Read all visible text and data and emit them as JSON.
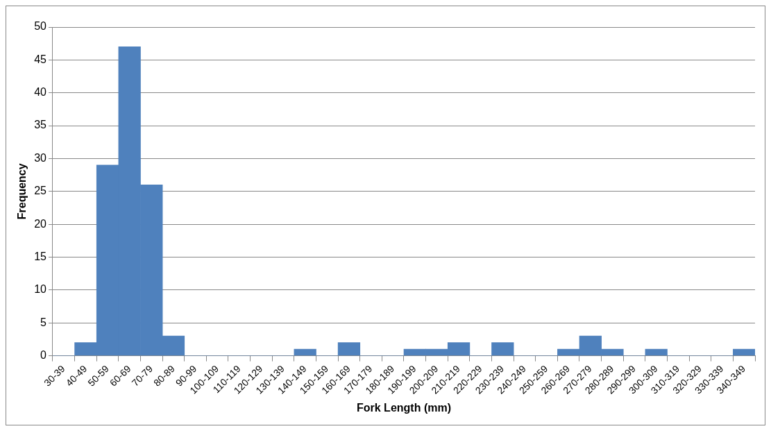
{
  "chart_data": {
    "type": "bar",
    "xlabel": "Fork Length (mm)",
    "ylabel": "Frequency",
    "categories": [
      "30-39",
      "40-49",
      "50-59",
      "60-69",
      "70-79",
      "80-89",
      "90-99",
      "100-109",
      "110-119",
      "120-129",
      "130-139",
      "140-149",
      "150-159",
      "160-169",
      "170-179",
      "180-189",
      "190-199",
      "200-209",
      "210-219",
      "220-229",
      "230-239",
      "240-249",
      "250-259",
      "260-269",
      "270-279",
      "280-289",
      "290-299",
      "300-309",
      "310-319",
      "320-329",
      "330-339",
      "340-349"
    ],
    "values": [
      0,
      2,
      29,
      47,
      26,
      3,
      0,
      0,
      0,
      0,
      0,
      1,
      0,
      2,
      0,
      0,
      1,
      1,
      2,
      0,
      2,
      0,
      0,
      1,
      3,
      1,
      0,
      1,
      0,
      0,
      0,
      1
    ],
    "color": "#4f81bd",
    "ylim": [
      0,
      50
    ],
    "yticks": [
      0,
      5,
      10,
      15,
      20,
      25,
      30,
      35,
      40,
      45,
      50
    ],
    "grid": "y",
    "legend": false
  }
}
